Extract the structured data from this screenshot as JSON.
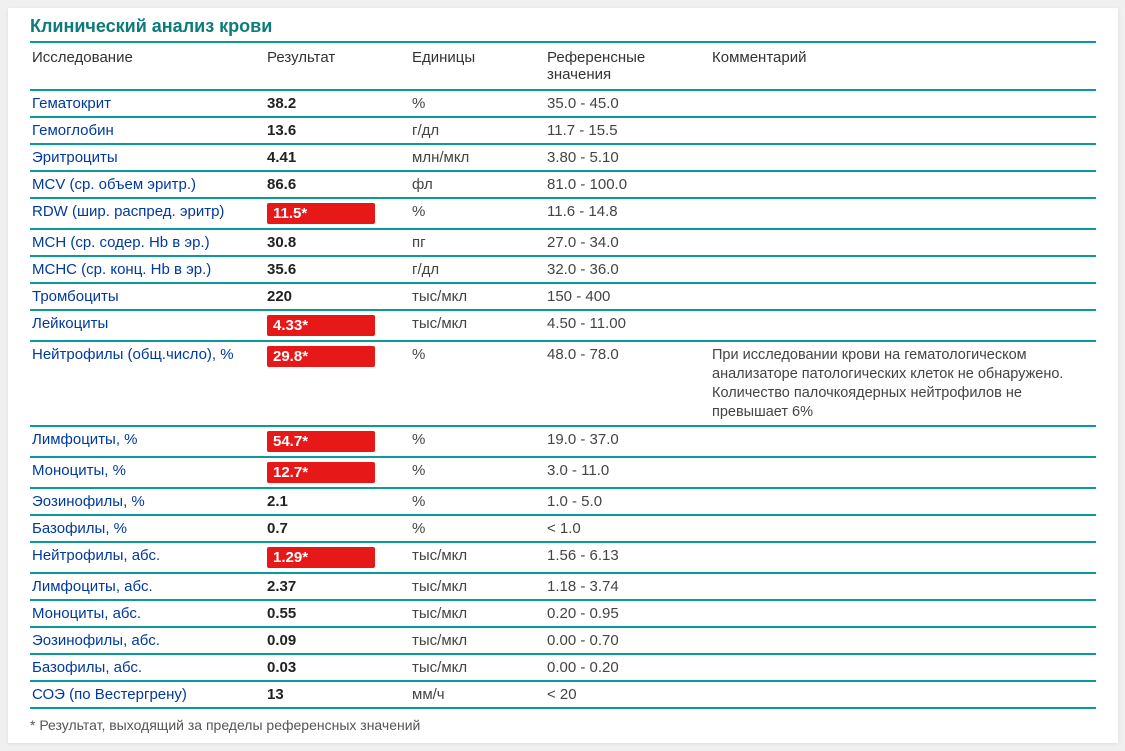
{
  "title": "Клинический анализ крови",
  "columns": {
    "name": "Исследование",
    "result": "Результат",
    "unit": "Единицы",
    "ref": "Референсные значения",
    "comment": "Комментарий"
  },
  "colors": {
    "accent": "#0a9a9a",
    "title": "#0a7c7c",
    "name_text": "#003a9e",
    "flag_bg": "#e61818",
    "flag_text": "#ffffff",
    "body_bg": "#ffffff"
  },
  "rows": [
    {
      "name": "Гематокрит",
      "result": "38.2",
      "flagged": false,
      "unit": "%",
      "ref": "35.0 - 45.0",
      "comment": ""
    },
    {
      "name": "Гемоглобин",
      "result": "13.6",
      "flagged": false,
      "unit": "г/дл",
      "ref": "11.7 - 15.5",
      "comment": ""
    },
    {
      "name": "Эритроциты",
      "result": "4.41",
      "flagged": false,
      "unit": "млн/мкл",
      "ref": "3.80 - 5.10",
      "comment": ""
    },
    {
      "name": "MCV (ср. объем эритр.)",
      "result": "86.6",
      "flagged": false,
      "unit": "фл",
      "ref": "81.0 - 100.0",
      "comment": ""
    },
    {
      "name": "RDW (шир. распред. эритр)",
      "result": "11.5*",
      "flagged": true,
      "unit": "%",
      "ref": "11.6 - 14.8",
      "comment": ""
    },
    {
      "name": "MCH (ср. содер. Hb в эр.)",
      "result": "30.8",
      "flagged": false,
      "unit": "пг",
      "ref": "27.0 - 34.0",
      "comment": ""
    },
    {
      "name": "MCHC (ср. конц. Hb в эр.)",
      "result": "35.6",
      "flagged": false,
      "unit": "г/дл",
      "ref": "32.0 - 36.0",
      "comment": ""
    },
    {
      "name": "Тромбоциты",
      "result": "220",
      "flagged": false,
      "unit": "тыс/мкл",
      "ref": "150 - 400",
      "comment": ""
    },
    {
      "name": "Лейкоциты",
      "result": "4.33*",
      "flagged": true,
      "unit": "тыс/мкл",
      "ref": "4.50 - 11.00",
      "comment": ""
    },
    {
      "name": "Нейтрофилы (общ.число), %",
      "result": "29.8*",
      "flagged": true,
      "unit": "%",
      "ref": "48.0 - 78.0",
      "comment": "При исследовании крови на гематологическом анализаторе патологических клеток не обнаружено. Количество палочкоядерных нейтрофилов не превышает 6%"
    },
    {
      "name": "Лимфоциты, %",
      "result": "54.7*",
      "flagged": true,
      "unit": "%",
      "ref": "19.0 - 37.0",
      "comment": ""
    },
    {
      "name": "Моноциты, %",
      "result": "12.7*",
      "flagged": true,
      "unit": "%",
      "ref": "3.0 - 11.0",
      "comment": ""
    },
    {
      "name": "Эозинофилы, %",
      "result": "2.1",
      "flagged": false,
      "unit": "%",
      "ref": "1.0 - 5.0",
      "comment": ""
    },
    {
      "name": "Базофилы, %",
      "result": "0.7",
      "flagged": false,
      "unit": "%",
      "ref": "< 1.0",
      "comment": ""
    },
    {
      "name": "Нейтрофилы, абс.",
      "result": "1.29*",
      "flagged": true,
      "unit": "тыс/мкл",
      "ref": "1.56 - 6.13",
      "comment": ""
    },
    {
      "name": "Лимфоциты, абс.",
      "result": "2.37",
      "flagged": false,
      "unit": "тыс/мкл",
      "ref": "1.18 - 3.74",
      "comment": ""
    },
    {
      "name": "Моноциты, абс.",
      "result": "0.55",
      "flagged": false,
      "unit": "тыс/мкл",
      "ref": "0.20 - 0.95",
      "comment": ""
    },
    {
      "name": "Эозинофилы, абс.",
      "result": "0.09",
      "flagged": false,
      "unit": "тыс/мкл",
      "ref": "0.00 - 0.70",
      "comment": ""
    },
    {
      "name": "Базофилы, абс.",
      "result": "0.03",
      "flagged": false,
      "unit": "тыс/мкл",
      "ref": "0.00 - 0.20",
      "comment": ""
    },
    {
      "name": "СОЭ (по Вестергрену)",
      "result": "13",
      "flagged": false,
      "unit": "мм/ч",
      "ref": "< 20",
      "comment": ""
    }
  ],
  "footnote": "* Результат, выходящий за пределы референсных значений"
}
